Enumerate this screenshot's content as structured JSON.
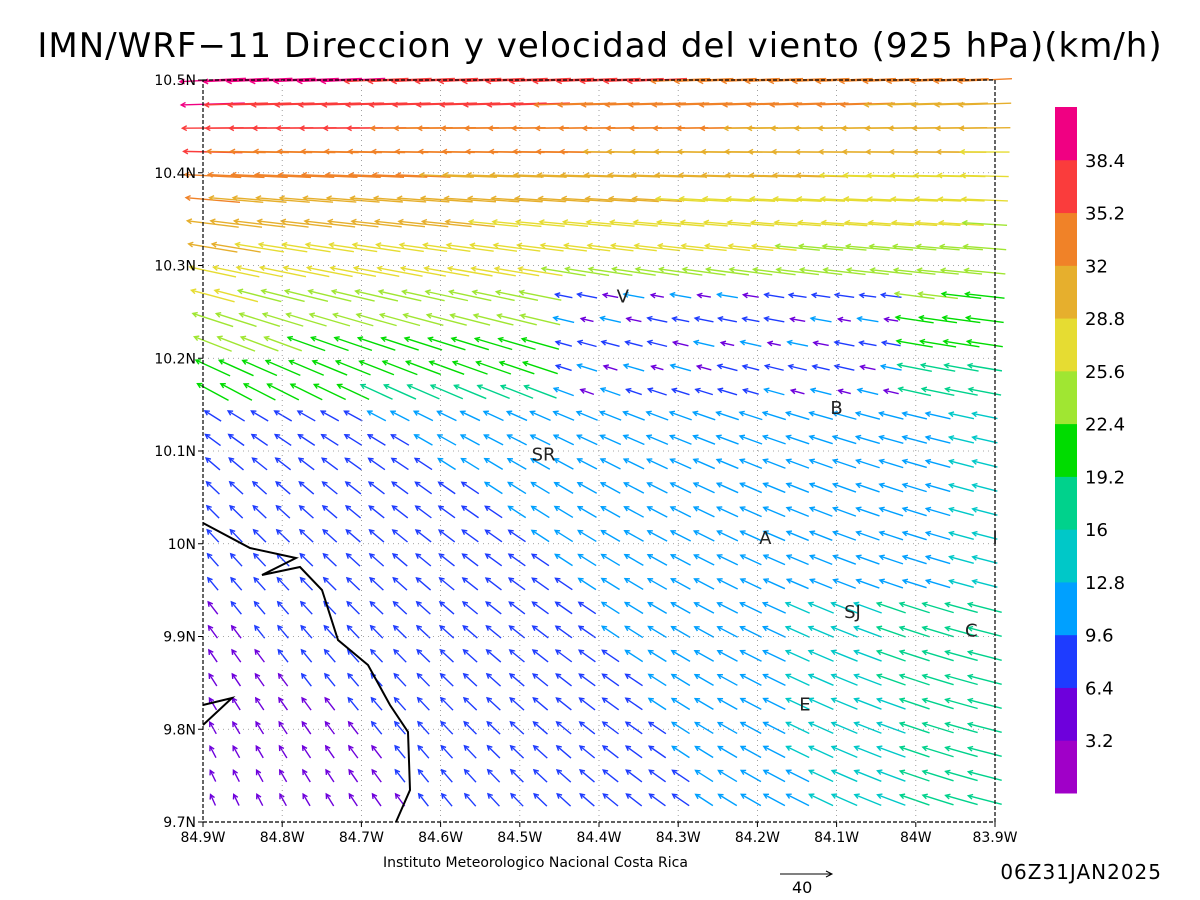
{
  "title": "IMN/WRF−11 Direccion y velocidad del viento (925 hPa)(km/h)",
  "credit": "Instituto Meteorologico Nacional Costa Rica",
  "valid_time": "06Z31JAN2025",
  "reference_vector_label": "40",
  "axes": {
    "x_ticks": [
      "84.9W",
      "84.8W",
      "84.7W",
      "84.6W",
      "84.5W",
      "84.4W",
      "84.3W",
      "84.2W",
      "84.1W",
      "84W",
      "83.9W"
    ],
    "y_ticks": [
      "9.7N",
      "9.8N",
      "9.9N",
      "10N",
      "10.1N",
      "10.2N",
      "10.3N",
      "10.4N",
      "10.5N"
    ],
    "lon_range": [
      -84.9,
      -83.9
    ],
    "lat_range": [
      9.7,
      10.5
    ]
  },
  "colorbar": {
    "labels": [
      "3.2",
      "6.4",
      "9.6",
      "12.8",
      "16",
      "19.2",
      "22.4",
      "25.6",
      "28.8",
      "32",
      "35.2",
      "38.4"
    ],
    "colors": [
      "#a000c8",
      "#6e00dc",
      "#1e3cff",
      "#00a0ff",
      "#00c8c8",
      "#00d28c",
      "#00dc00",
      "#a0e632",
      "#e6dc32",
      "#e6af2d",
      "#f08228",
      "#fa3c3c",
      "#f00082"
    ]
  },
  "place_labels": [
    {
      "text": "V",
      "lon": -84.37,
      "lat": 10.26
    },
    {
      "text": "B",
      "lon": -84.1,
      "lat": 10.14
    },
    {
      "text": "SR",
      "lon": -84.47,
      "lat": 10.09
    },
    {
      "text": "A",
      "lon": -84.19,
      "lat": 10.0
    },
    {
      "text": "I",
      "lon": -83.9,
      "lat": 10.0
    },
    {
      "text": "SJ",
      "lon": -84.08,
      "lat": 9.92
    },
    {
      "text": "C",
      "lon": -83.93,
      "lat": 9.9
    },
    {
      "text": "E",
      "lon": -84.14,
      "lat": 9.82
    }
  ]
}
